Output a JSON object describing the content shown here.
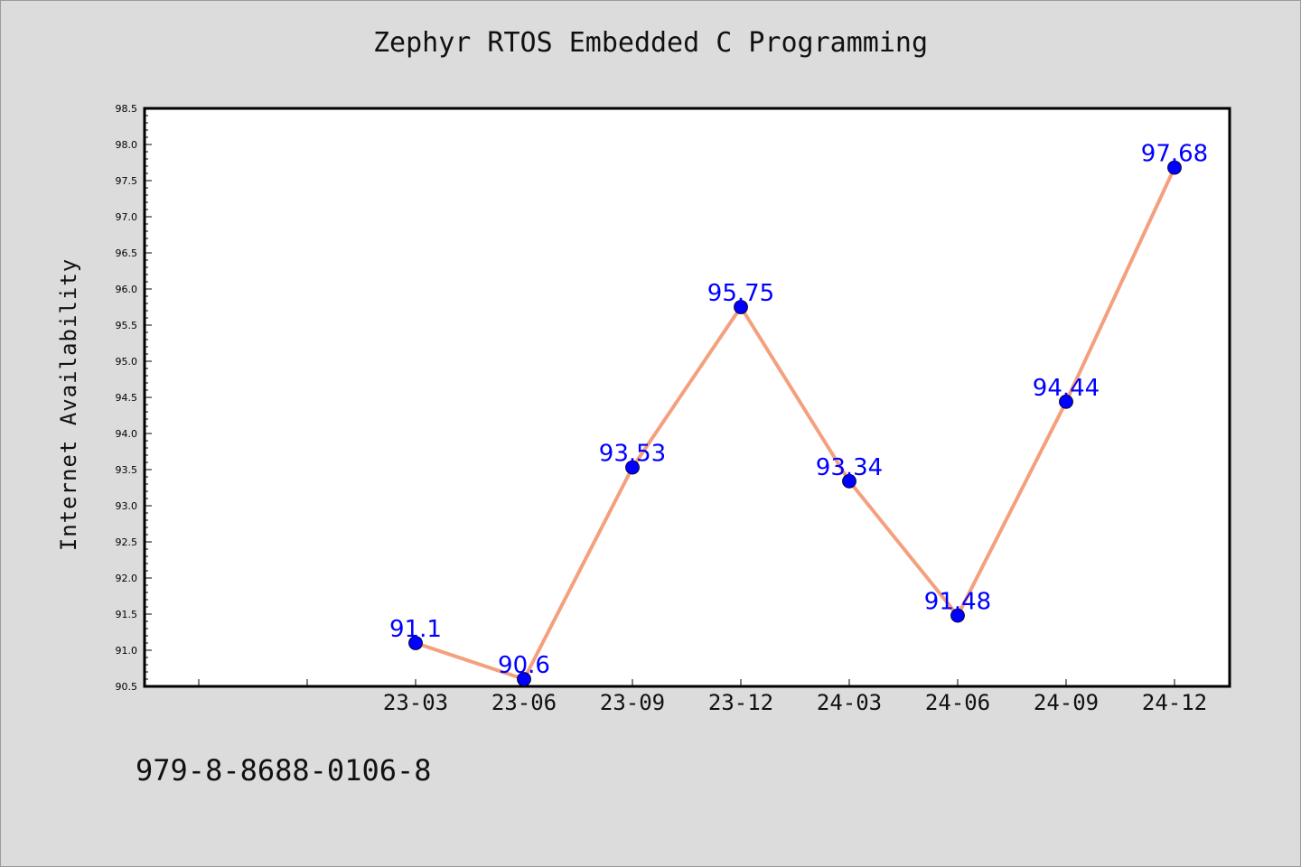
{
  "chart_data": {
    "type": "line",
    "title": "Zephyr RTOS Embedded C Programming",
    "xlabel": "",
    "ylabel": "Internet Availability",
    "categories": [
      "23-03",
      "23-06",
      "23-09",
      "23-12",
      "24-03",
      "24-06",
      "24-09",
      "24-12"
    ],
    "series": [
      {
        "values": [
          91.1,
          90.6,
          93.53,
          95.75,
          93.34,
          91.48,
          94.44,
          97.68
        ],
        "labels": [
          "91.1",
          "90.6",
          "93.53",
          "95.75",
          "93.34",
          "91.48",
          "94.44",
          "97.68"
        ]
      }
    ],
    "ylim": [
      90.5,
      98.5
    ],
    "yticks": [
      "90.5",
      "91.0",
      "91.5",
      "92.0",
      "92.5",
      "93.0",
      "93.5",
      "94.0",
      "94.5",
      "95.0",
      "95.5",
      "96.0",
      "96.5",
      "97.0",
      "97.5",
      "98.0",
      "98.5"
    ],
    "grid": false,
    "colors": {
      "line": "#f4a07e",
      "marker": "#0000ff",
      "label": "#0000ff",
      "axes": "#000000",
      "plot_bg": "#ffffff",
      "figure_bg": "#dcdcdc"
    }
  },
  "footer": {
    "isbn": "979-8-8688-0106-8"
  }
}
